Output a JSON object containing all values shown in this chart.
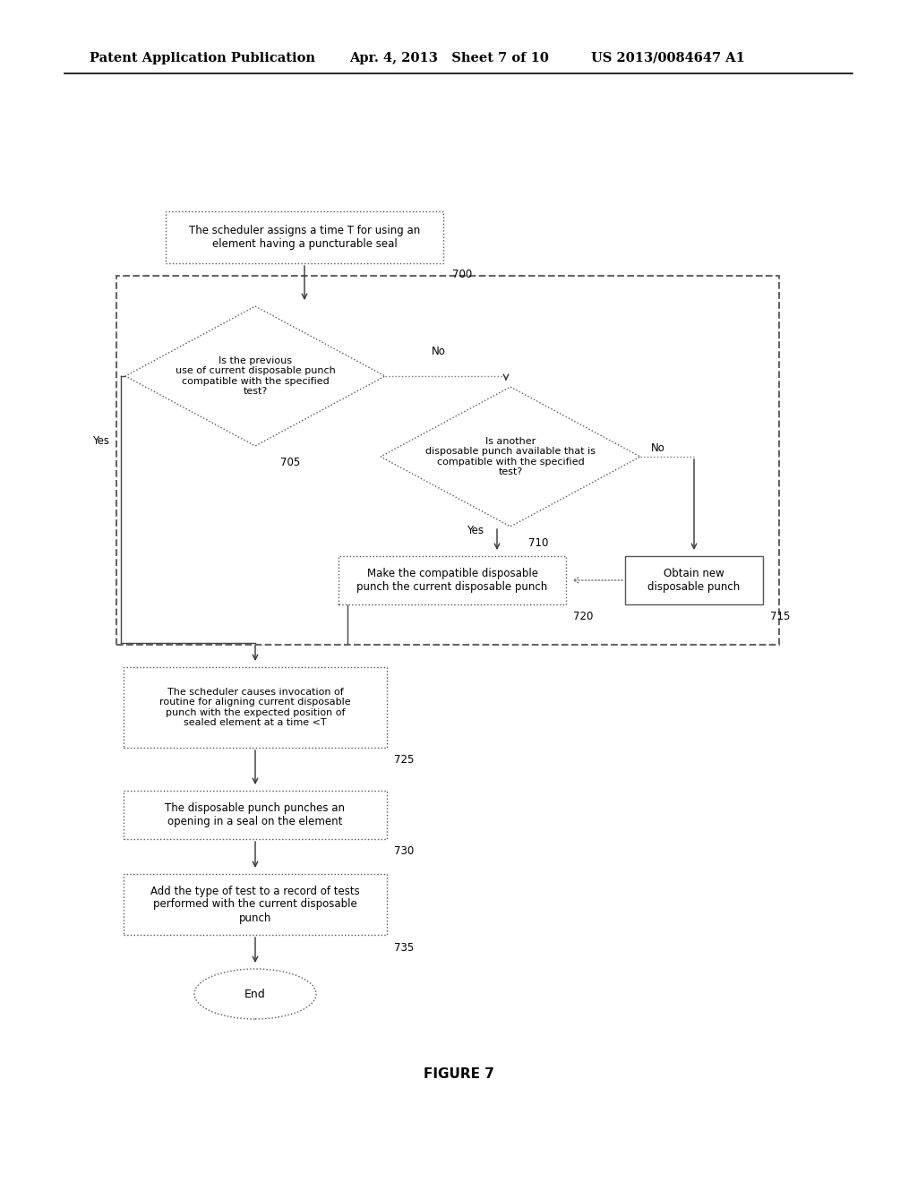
{
  "header_left": "Patent Application Publication",
  "header_middle": "Apr. 4, 2013   Sheet 7 of 10",
  "header_right": "US 2013/0084647 A1",
  "figure_label": "FIGURE 7",
  "bg_color": "#ffffff"
}
